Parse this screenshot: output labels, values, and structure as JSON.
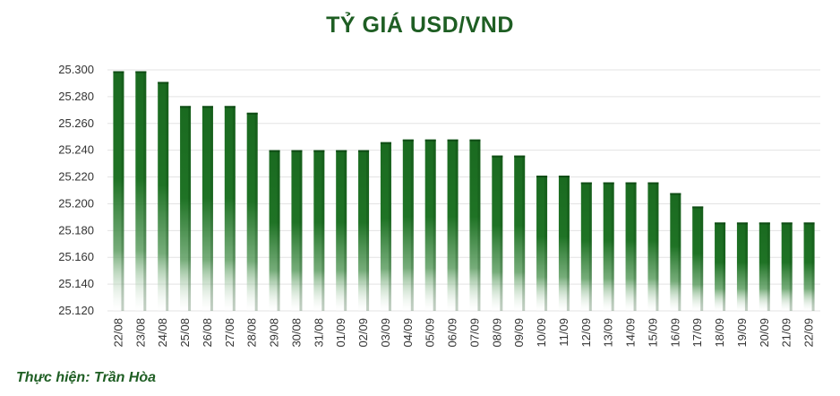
{
  "chart_data": {
    "type": "bar",
    "title": "TỶ GIÁ USD/VND",
    "xlabel": "",
    "ylabel": "",
    "categories": [
      "22/08",
      "23/08",
      "24/08",
      "25/08",
      "26/08",
      "27/08",
      "28/08",
      "29/08",
      "30/08",
      "31/08",
      "01/09",
      "02/09",
      "03/09",
      "04/09",
      "05/09",
      "06/09",
      "07/09",
      "08/09",
      "09/09",
      "10/09",
      "11/09",
      "12/09",
      "13/09",
      "14/09",
      "15/09",
      "16/09",
      "17/09",
      "18/09",
      "19/09",
      "20/09",
      "21/09",
      "22/09"
    ],
    "values": [
      25299,
      25299,
      25291,
      25273,
      25273,
      25273,
      25268,
      25240,
      25240,
      25240,
      25240,
      25240,
      25246,
      25248,
      25248,
      25248,
      25248,
      25236,
      25236,
      25221,
      25221,
      25216,
      25216,
      25216,
      25216,
      25208,
      25198,
      25186,
      25186,
      25186,
      25186,
      25186
    ],
    "ylim": [
      25120,
      25300
    ],
    "yticks": [
      "25.120",
      "25.140",
      "25.160",
      "25.180",
      "25.200",
      "25.220",
      "25.240",
      "25.260",
      "25.280",
      "25.300"
    ],
    "grid": true,
    "legend": "none",
    "bar_color": "#1b6b21",
    "bar_top_color": "#0f4d15"
  },
  "credit": "Thực hiện: Trần Hòa"
}
